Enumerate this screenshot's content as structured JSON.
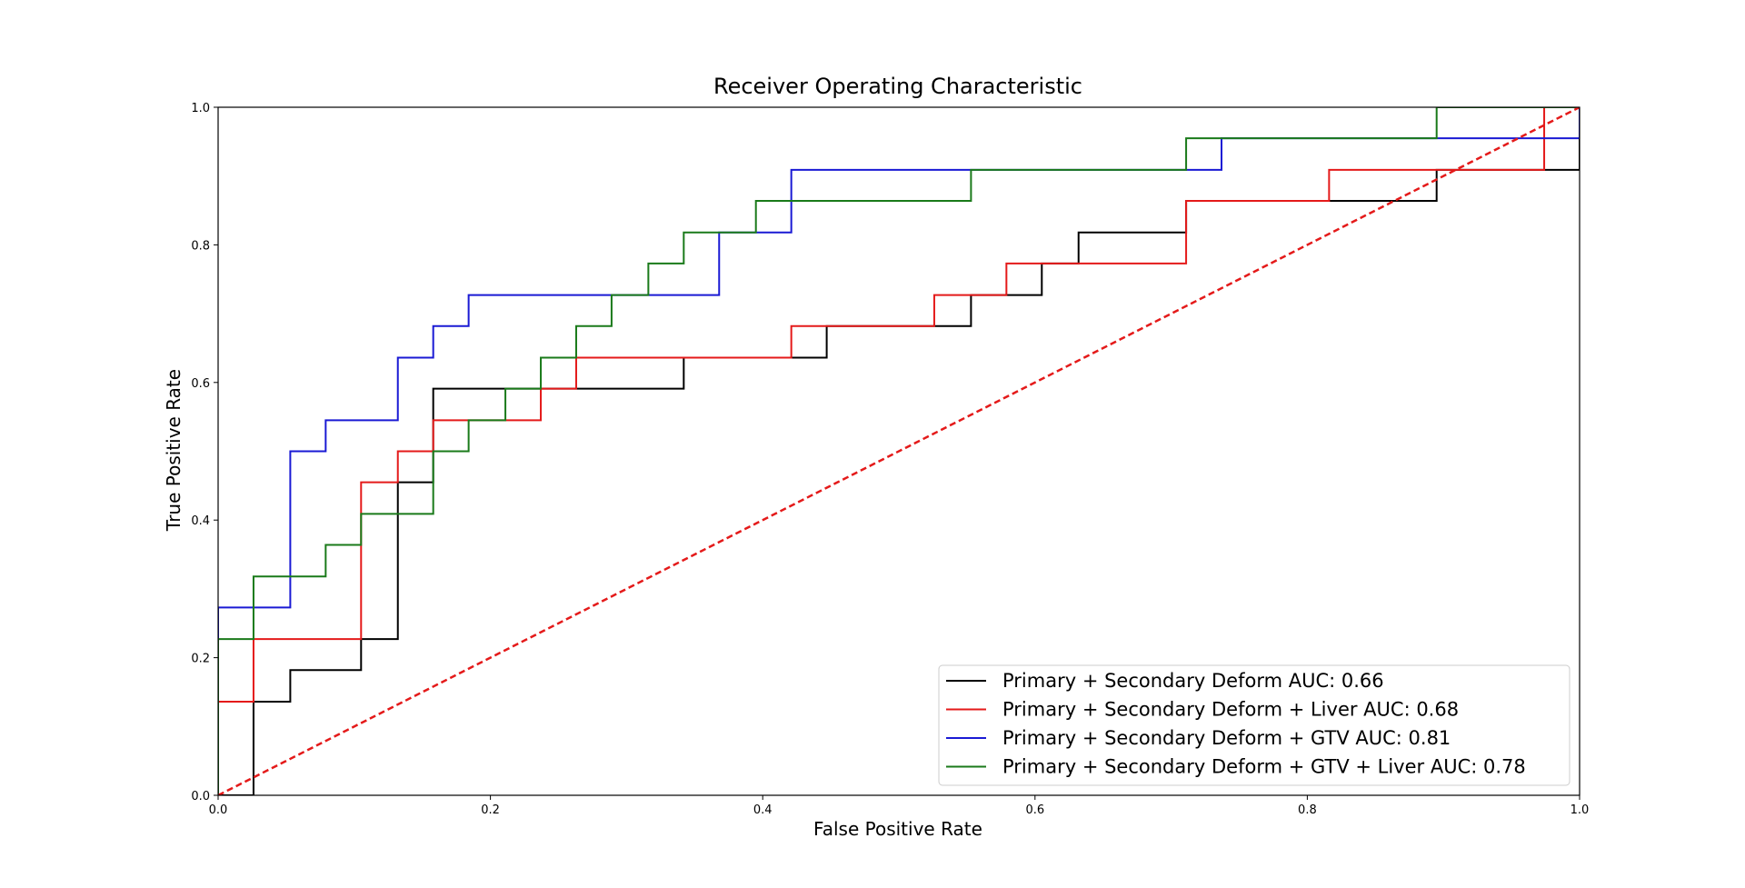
{
  "chart_data": {
    "type": "line",
    "title": "Receiver Operating Characteristic",
    "xlabel": "False Positive Rate",
    "ylabel": "True Positive Rate",
    "xlim": [
      0,
      1
    ],
    "ylim": [
      0,
      1
    ],
    "xticks": [
      "0.0",
      "0.2",
      "0.4",
      "0.6",
      "0.8",
      "1.0"
    ],
    "yticks": [
      "0.0",
      "0.2",
      "0.4",
      "0.6",
      "0.8",
      "1.0"
    ],
    "grid": false,
    "legend_position": "lower-right",
    "series": [
      {
        "name": "Primary + Secondary Deform AUC: 0.66",
        "color": "#000000",
        "x": [
          0.0,
          0.026,
          0.026,
          0.053,
          0.053,
          0.105,
          0.105,
          0.132,
          0.132,
          0.158,
          0.158,
          0.342,
          0.342,
          0.447,
          0.447,
          0.553,
          0.553,
          0.605,
          0.605,
          0.632,
          0.632,
          0.711,
          0.711,
          0.895,
          0.895,
          1.0,
          1.0
        ],
        "y": [
          0.0,
          0.0,
          0.136,
          0.136,
          0.182,
          0.182,
          0.227,
          0.227,
          0.455,
          0.455,
          0.591,
          0.591,
          0.636,
          0.636,
          0.682,
          0.682,
          0.727,
          0.727,
          0.773,
          0.773,
          0.818,
          0.818,
          0.864,
          0.864,
          0.909,
          0.909,
          1.0
        ]
      },
      {
        "name": "Primary + Secondary Deform + Liver AUC: 0.68",
        "color": "#e41a1a",
        "x": [
          0.0,
          0.0,
          0.026,
          0.026,
          0.105,
          0.105,
          0.132,
          0.132,
          0.158,
          0.158,
          0.237,
          0.237,
          0.263,
          0.263,
          0.421,
          0.421,
          0.526,
          0.526,
          0.579,
          0.579,
          0.711,
          0.711,
          0.816,
          0.816,
          0.974,
          0.974,
          1.0
        ],
        "y": [
          0.0,
          0.136,
          0.136,
          0.227,
          0.227,
          0.455,
          0.455,
          0.5,
          0.5,
          0.545,
          0.545,
          0.591,
          0.591,
          0.636,
          0.636,
          0.682,
          0.682,
          0.727,
          0.727,
          0.773,
          0.773,
          0.864,
          0.864,
          0.909,
          0.909,
          1.0,
          1.0
        ]
      },
      {
        "name": "Primary + Secondary Deform + GTV AUC: 0.81",
        "color": "#1a1ad4",
        "x": [
          0.0,
          0.0,
          0.053,
          0.053,
          0.079,
          0.079,
          0.132,
          0.132,
          0.158,
          0.158,
          0.184,
          0.184,
          0.368,
          0.368,
          0.421,
          0.421,
          0.737,
          0.737,
          0.895,
          0.895,
          1.0,
          1.0
        ],
        "y": [
          0.0,
          0.273,
          0.273,
          0.5,
          0.5,
          0.545,
          0.545,
          0.636,
          0.636,
          0.682,
          0.682,
          0.727,
          0.727,
          0.818,
          0.818,
          0.909,
          0.909,
          0.955,
          0.955,
          0.955,
          0.955,
          1.0
        ]
      },
      {
        "name": "Primary + Secondary Deform + GTV + Liver AUC: 0.78",
        "color": "#1a7a1a",
        "x": [
          0.0,
          0.0,
          0.026,
          0.026,
          0.079,
          0.079,
          0.105,
          0.105,
          0.158,
          0.158,
          0.184,
          0.184,
          0.211,
          0.211,
          0.237,
          0.237,
          0.263,
          0.263,
          0.289,
          0.289,
          0.316,
          0.316,
          0.342,
          0.342,
          0.395,
          0.395,
          0.553,
          0.553,
          0.711,
          0.711,
          0.895,
          0.895,
          1.0
        ],
        "y": [
          0.0,
          0.227,
          0.227,
          0.318,
          0.318,
          0.364,
          0.364,
          0.409,
          0.409,
          0.5,
          0.5,
          0.545,
          0.545,
          0.591,
          0.591,
          0.636,
          0.636,
          0.682,
          0.682,
          0.727,
          0.727,
          0.773,
          0.773,
          0.818,
          0.818,
          0.864,
          0.864,
          0.909,
          0.909,
          0.955,
          0.955,
          1.0,
          1.0
        ]
      }
    ],
    "reference_line": {
      "color": "#e41a1a",
      "style": "dashed",
      "x": [
        0,
        1
      ],
      "y": [
        0,
        1
      ]
    }
  }
}
